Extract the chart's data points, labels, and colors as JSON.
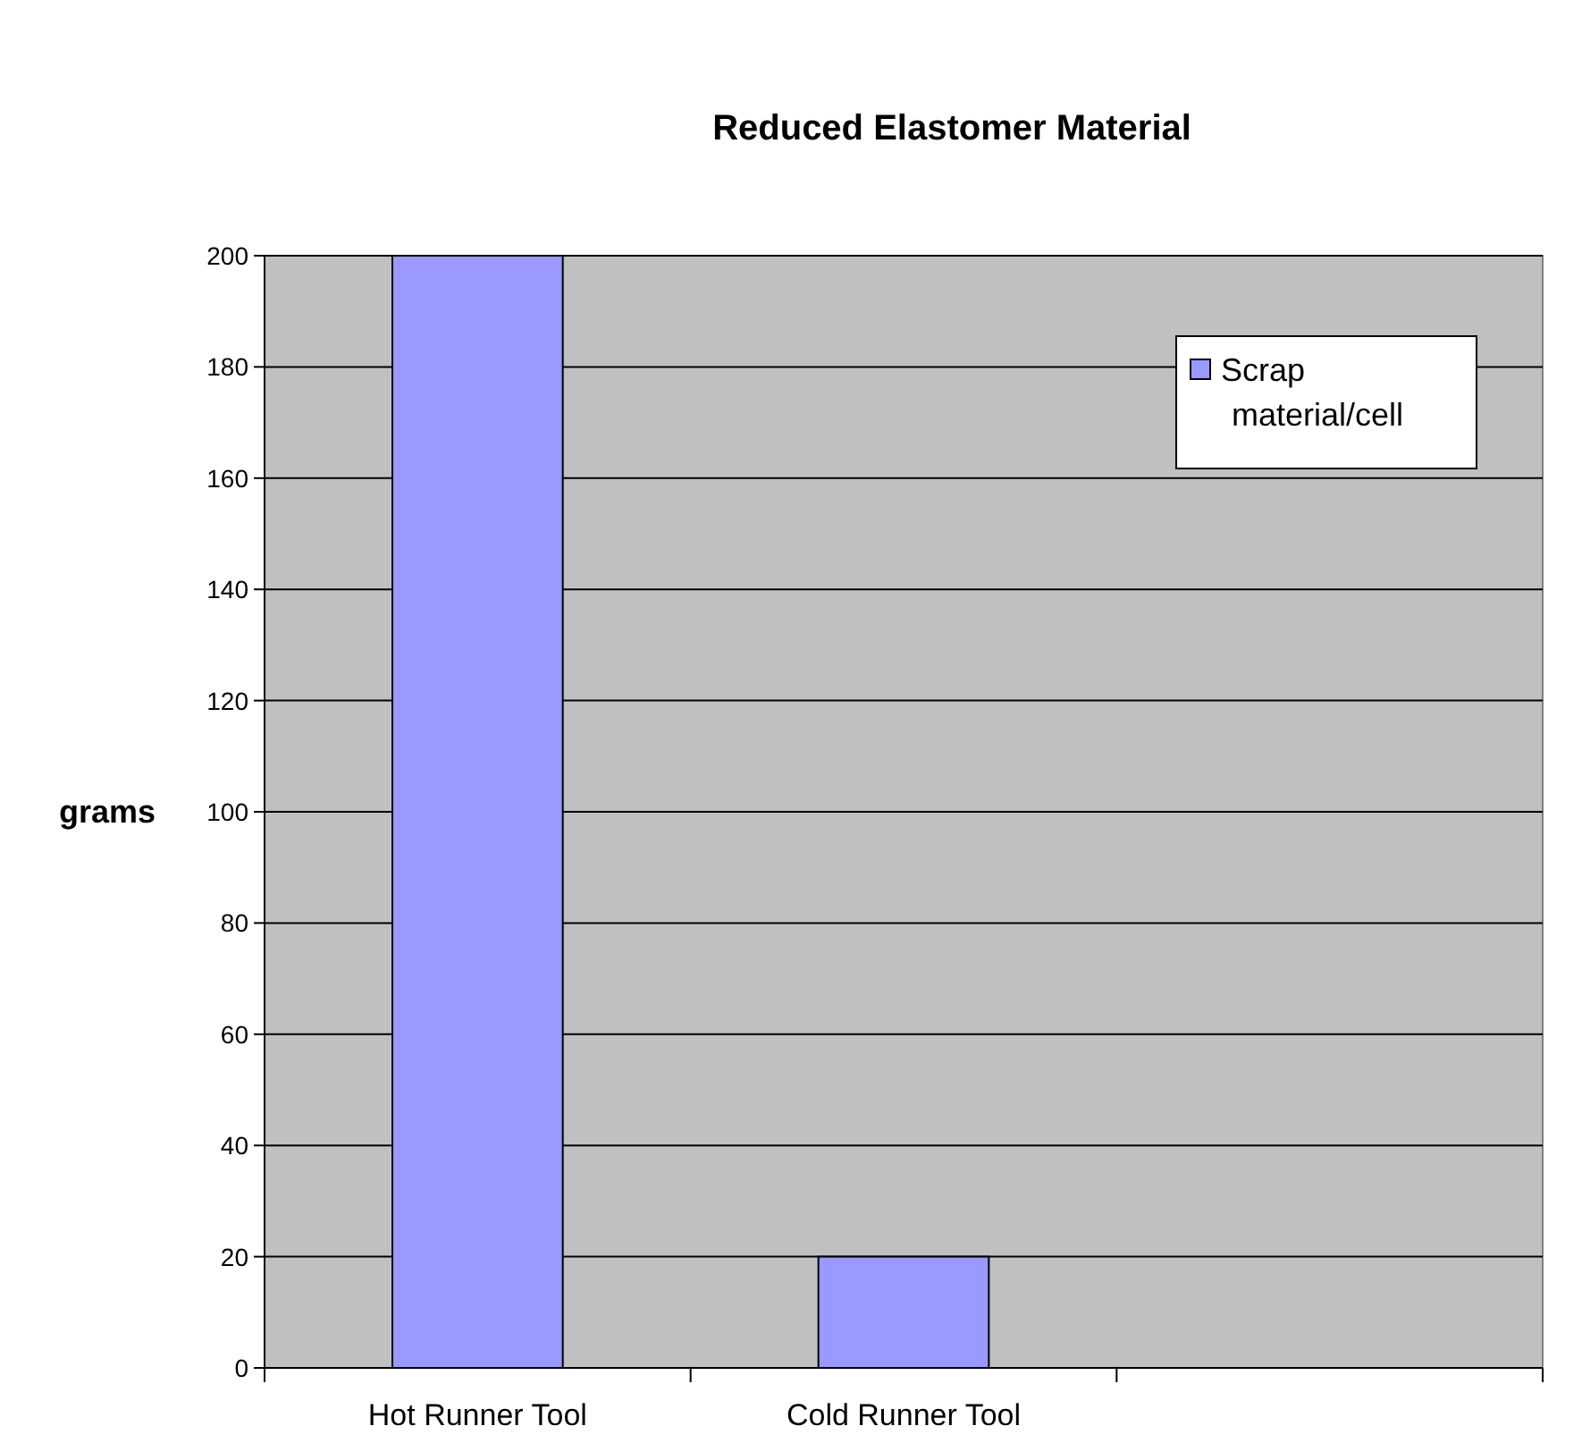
{
  "chart_data": {
    "type": "bar",
    "title": "Reduced Elastomer Material",
    "ylabel": "grams",
    "categories": [
      "Hot Runner Tool",
      "Cold Runner Tool",
      null
    ],
    "series": [
      {
        "name": "Scrap material/cell",
        "color": "#9999ff",
        "values": [
          200,
          20,
          null
        ]
      }
    ],
    "ylim": [
      0,
      200
    ],
    "yticks": [
      0,
      20,
      40,
      60,
      80,
      100,
      120,
      140,
      160,
      180,
      200
    ],
    "grid": "y",
    "legend": "top right"
  }
}
